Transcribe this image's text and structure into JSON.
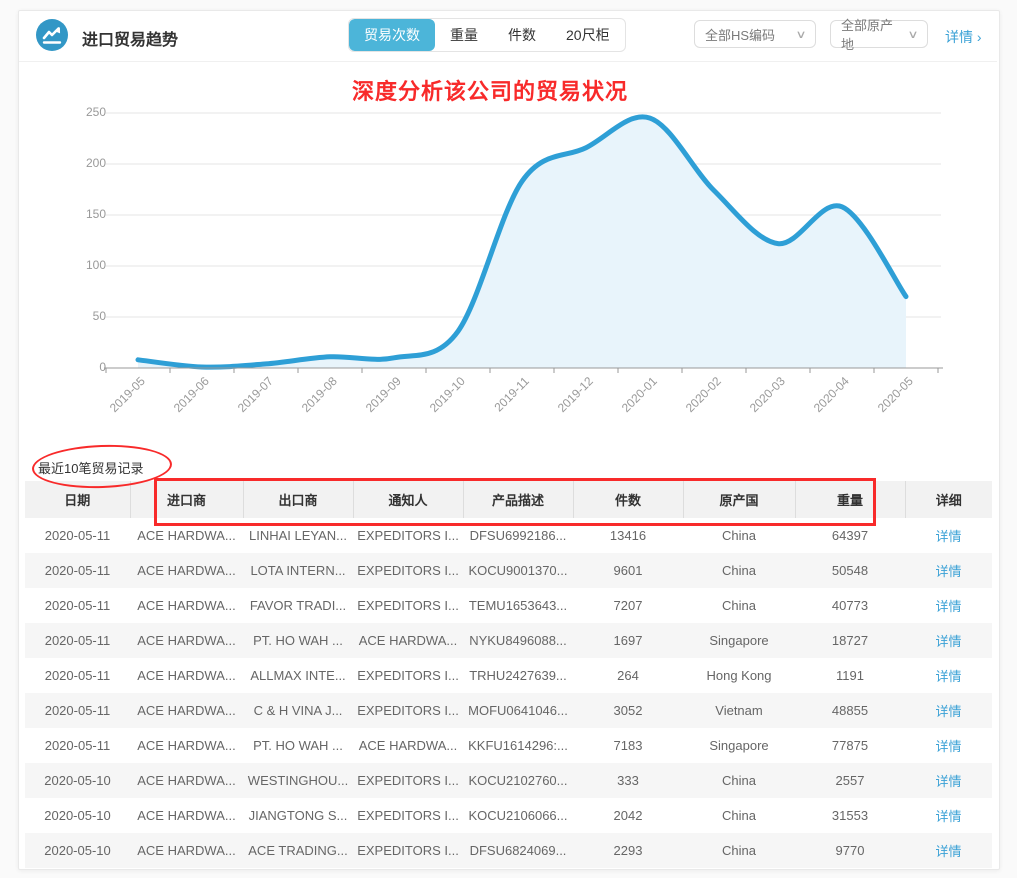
{
  "colors": {
    "accent_red": "#f82a2a",
    "link_blue": "#3aa1d6",
    "tab_active": "#4cb5d9",
    "icon_blue": "#3297c6"
  },
  "header": {
    "title": "进口贸易趋势",
    "tabs": [
      {
        "label": "贸易次数",
        "active": true
      },
      {
        "label": "重量",
        "active": false
      },
      {
        "label": "件数",
        "active": false
      },
      {
        "label": "20尺柜",
        "active": false
      }
    ],
    "filters": [
      {
        "label": "全部HS编码"
      },
      {
        "label": "全部原产地"
      }
    ],
    "details_link": "详情 ›"
  },
  "annotations": {
    "chart_title": "深度分析该公司的贸易状况"
  },
  "chart_data": {
    "type": "area",
    "title": "进口贸易趋势 (贸易次数)",
    "x": [
      "2019-05",
      "2019-06",
      "2019-07",
      "2019-08",
      "2019-09",
      "2019-10",
      "2019-11",
      "2019-12",
      "2020-01",
      "2020-02",
      "2020-03",
      "2020-04",
      "2020-05"
    ],
    "series": [
      {
        "name": "贸易次数",
        "values": [
          8,
          1,
          4,
          11,
          10,
          36,
          183,
          216,
          245,
          174,
          122,
          158,
          70
        ]
      }
    ],
    "ylim": [
      0,
      250
    ],
    "yticks": [
      0,
      50,
      100,
      150,
      200,
      250
    ],
    "grid": true,
    "legend": "none",
    "smooth": true,
    "line_color": "#2e9fd6",
    "fill_color": "#e8f4fb"
  },
  "table": {
    "caption": "最近10笔贸易记录",
    "columns": [
      "日期",
      "进口商",
      "出口商",
      "通知人",
      "产品描述",
      "件数",
      "原产国",
      "重量",
      "详细"
    ],
    "detail_label": "详情",
    "rows": [
      [
        "2020-05-11",
        "ACE HARDWA...",
        "LINHAI LEYAN...",
        "EXPEDITORS I...",
        "DFSU6992186...",
        "13416",
        "China",
        "64397"
      ],
      [
        "2020-05-11",
        "ACE HARDWA...",
        "LOTA INTERN...",
        "EXPEDITORS I...",
        "KOCU9001370...",
        "9601",
        "China",
        "50548"
      ],
      [
        "2020-05-11",
        "ACE HARDWA...",
        "FAVOR TRADI...",
        "EXPEDITORS I...",
        "TEMU1653643...",
        "7207",
        "China",
        "40773"
      ],
      [
        "2020-05-11",
        "ACE HARDWA...",
        "PT. HO WAH ...",
        "ACE HARDWA...",
        "NYKU8496088...",
        "1697",
        "Singapore",
        "18727"
      ],
      [
        "2020-05-11",
        "ACE HARDWA...",
        "ALLMAX INTE...",
        "EXPEDITORS I...",
        "TRHU2427639...",
        "264",
        "Hong Kong",
        "1191"
      ],
      [
        "2020-05-11",
        "ACE HARDWA...",
        "C & H VINA J...",
        "EXPEDITORS I...",
        "MOFU0641046...",
        "3052",
        "Vietnam",
        "48855"
      ],
      [
        "2020-05-11",
        "ACE HARDWA...",
        "PT. HO WAH ...",
        "ACE HARDWA...",
        "KKFU1614296:...",
        "7183",
        "Singapore",
        "77875"
      ],
      [
        "2020-05-10",
        "ACE HARDWA...",
        "WESTINGHOU...",
        "EXPEDITORS I...",
        "KOCU2102760...",
        "333",
        "China",
        "2557"
      ],
      [
        "2020-05-10",
        "ACE HARDWA...",
        "JIANGTONG S...",
        "EXPEDITORS I...",
        "KOCU2106066...",
        "2042",
        "China",
        "31553"
      ],
      [
        "2020-05-10",
        "ACE HARDWA...",
        "ACE TRADING...",
        "EXPEDITORS I...",
        "DFSU6824069...",
        "2293",
        "China",
        "9770"
      ]
    ]
  }
}
